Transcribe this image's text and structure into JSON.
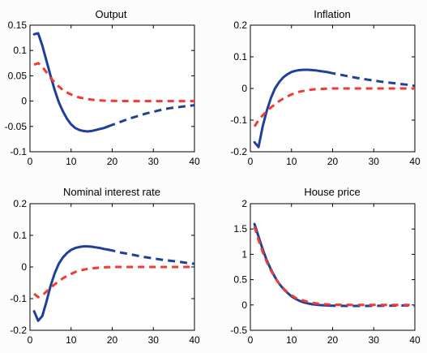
{
  "colors": {
    "blue": "#1f3f9b",
    "red": "#ef3b33",
    "axis": "#000000",
    "background": "#fcfcfc"
  },
  "chart_data": [
    {
      "type": "line",
      "title": "Output",
      "xlim": [
        0,
        40
      ],
      "ylim": [
        -0.1,
        0.15
      ],
      "xticks": [
        0,
        10,
        20,
        30,
        40
      ],
      "xtick_labels": [
        "0",
        "10",
        "20",
        "30",
        "40"
      ],
      "yticks": [
        -0.1,
        -0.05,
        0,
        0.05,
        0.1,
        0.15
      ],
      "ytick_labels": [
        "-0.1",
        "-0.05",
        "0",
        "0.05",
        "0.1",
        "0.15"
      ],
      "grid": false,
      "series": [
        {
          "color": "#1f3f9b",
          "style": "solid-then-dashed",
          "dash_from_x": 19,
          "x": [
            1,
            2,
            3,
            4,
            5,
            6,
            7,
            8,
            9,
            10,
            11,
            12,
            13,
            14,
            15,
            16,
            17,
            18,
            19,
            20,
            22,
            24,
            26,
            28,
            30,
            32,
            34,
            36,
            38,
            40
          ],
          "y": [
            0.132,
            0.134,
            0.11,
            0.08,
            0.05,
            0.022,
            -0.002,
            -0.02,
            -0.035,
            -0.046,
            -0.053,
            -0.057,
            -0.059,
            -0.06,
            -0.059,
            -0.057,
            -0.055,
            -0.053,
            -0.05,
            -0.047,
            -0.041,
            -0.035,
            -0.03,
            -0.025,
            -0.021,
            -0.017,
            -0.014,
            -0.012,
            -0.01,
            -0.008
          ]
        },
        {
          "color": "#ef3b33",
          "style": "dashed",
          "x": [
            1,
            2,
            3,
            4,
            5,
            6,
            7,
            8,
            9,
            10,
            11,
            12,
            14,
            16,
            18,
            20,
            25,
            30,
            35,
            40
          ],
          "y": [
            0.072,
            0.075,
            0.068,
            0.057,
            0.046,
            0.037,
            0.029,
            0.022,
            0.017,
            0.013,
            0.01,
            0.007,
            0.004,
            0.002,
            0.001,
            0.0005,
            0,
            0,
            0,
            0
          ]
        }
      ]
    },
    {
      "type": "line",
      "title": "Inflation",
      "xlim": [
        0,
        40
      ],
      "ylim": [
        -0.2,
        0.2
      ],
      "xticks": [
        0,
        10,
        20,
        30,
        40
      ],
      "xtick_labels": [
        "0",
        "10",
        "20",
        "30",
        "40"
      ],
      "yticks": [
        -0.2,
        -0.1,
        0,
        0.1,
        0.2
      ],
      "ytick_labels": [
        "-0.2",
        "-0.1",
        "0",
        "0.1",
        "0.2"
      ],
      "grid": false,
      "series": [
        {
          "color": "#1f3f9b",
          "style": "solid-then-dashed",
          "dash_from_x": 19,
          "x": [
            1,
            2,
            3,
            4,
            5,
            6,
            7,
            8,
            9,
            10,
            11,
            12,
            13,
            14,
            15,
            16,
            17,
            18,
            19,
            20,
            22,
            24,
            26,
            28,
            30,
            32,
            34,
            36,
            38,
            40
          ],
          "y": [
            -0.17,
            -0.185,
            -0.12,
            -0.07,
            -0.03,
            0.0,
            0.02,
            0.035,
            0.045,
            0.052,
            0.056,
            0.058,
            0.059,
            0.059,
            0.058,
            0.057,
            0.055,
            0.053,
            0.051,
            0.048,
            0.043,
            0.038,
            0.033,
            0.029,
            0.025,
            0.021,
            0.018,
            0.015,
            0.012,
            0.008
          ]
        },
        {
          "color": "#ef3b33",
          "style": "dashed",
          "x": [
            1,
            2,
            3,
            4,
            5,
            6,
            7,
            8,
            9,
            10,
            11,
            12,
            14,
            16,
            18,
            20,
            25,
            30,
            35,
            40
          ],
          "y": [
            -0.12,
            -0.1,
            -0.085,
            -0.072,
            -0.06,
            -0.05,
            -0.04,
            -0.032,
            -0.025,
            -0.019,
            -0.014,
            -0.01,
            -0.005,
            -0.002,
            -0.001,
            0,
            0,
            0,
            0,
            0
          ]
        }
      ]
    },
    {
      "type": "line",
      "title": "Nominal interest rate",
      "xlim": [
        0,
        40
      ],
      "ylim": [
        -0.2,
        0.2
      ],
      "xticks": [
        0,
        10,
        20,
        30,
        40
      ],
      "xtick_labels": [
        "0",
        "10",
        "20",
        "30",
        "40"
      ],
      "yticks": [
        -0.2,
        -0.1,
        0,
        0.1,
        0.2
      ],
      "ytick_labels": [
        "-0.2",
        "-0.1",
        "0",
        "0.1",
        "0.2"
      ],
      "grid": false,
      "series": [
        {
          "color": "#1f3f9b",
          "style": "solid-then-dashed",
          "dash_from_x": 19,
          "x": [
            1,
            2,
            3,
            4,
            5,
            6,
            7,
            8,
            9,
            10,
            11,
            12,
            13,
            14,
            15,
            16,
            17,
            18,
            19,
            20,
            22,
            24,
            26,
            28,
            30,
            32,
            34,
            36,
            38,
            40
          ],
          "y": [
            -0.14,
            -0.17,
            -0.155,
            -0.11,
            -0.06,
            -0.02,
            0.01,
            0.03,
            0.044,
            0.054,
            0.06,
            0.063,
            0.065,
            0.065,
            0.064,
            0.062,
            0.06,
            0.057,
            0.055,
            0.052,
            0.046,
            0.041,
            0.036,
            0.031,
            0.027,
            0.023,
            0.02,
            0.017,
            0.013,
            0.01
          ]
        },
        {
          "color": "#ef3b33",
          "style": "dashed",
          "x": [
            1,
            2,
            3,
            4,
            5,
            6,
            7,
            8,
            9,
            10,
            11,
            12,
            14,
            16,
            18,
            20,
            25,
            30,
            35,
            40
          ],
          "y": [
            -0.085,
            -0.095,
            -0.09,
            -0.078,
            -0.066,
            -0.055,
            -0.045,
            -0.036,
            -0.028,
            -0.022,
            -0.016,
            -0.012,
            -0.006,
            -0.003,
            -0.001,
            0,
            0,
            0,
            0,
            0
          ]
        }
      ]
    },
    {
      "type": "line",
      "title": "House price",
      "xlim": [
        0,
        40
      ],
      "ylim": [
        -0.5,
        2
      ],
      "xticks": [
        0,
        10,
        20,
        30,
        40
      ],
      "xtick_labels": [
        "0",
        "10",
        "20",
        "30",
        "40"
      ],
      "yticks": [
        -0.5,
        0,
        0.5,
        1,
        1.5,
        2
      ],
      "ytick_labels": [
        "-0.5",
        "0",
        "0.5",
        "1",
        "1.5",
        "2"
      ],
      "grid": false,
      "series": [
        {
          "color": "#1f3f9b",
          "style": "solid-then-dashed",
          "dash_from_x": 19,
          "x": [
            1,
            2,
            3,
            4,
            5,
            6,
            7,
            8,
            9,
            10,
            11,
            12,
            13,
            14,
            15,
            16,
            17,
            18,
            19,
            20,
            22,
            24,
            26,
            28,
            30,
            32,
            34,
            36,
            38,
            40
          ],
          "y": [
            1.6,
            1.35,
            1.1,
            0.88,
            0.7,
            0.55,
            0.42,
            0.32,
            0.24,
            0.17,
            0.12,
            0.08,
            0.05,
            0.03,
            0.015,
            0.005,
            -0.003,
            -0.008,
            -0.012,
            -0.015,
            -0.018,
            -0.02,
            -0.02,
            -0.019,
            -0.018,
            -0.016,
            -0.014,
            -0.012,
            -0.01,
            -0.008
          ]
        },
        {
          "color": "#ef3b33",
          "style": "dashed",
          "x": [
            1,
            2,
            3,
            4,
            5,
            6,
            7,
            8,
            9,
            10,
            11,
            12,
            14,
            16,
            18,
            20,
            25,
            30,
            35,
            40
          ],
          "y": [
            1.55,
            1.28,
            1.05,
            0.85,
            0.68,
            0.54,
            0.42,
            0.33,
            0.25,
            0.19,
            0.14,
            0.11,
            0.06,
            0.03,
            0.015,
            0.007,
            0,
            0,
            0,
            0
          ]
        }
      ]
    }
  ]
}
